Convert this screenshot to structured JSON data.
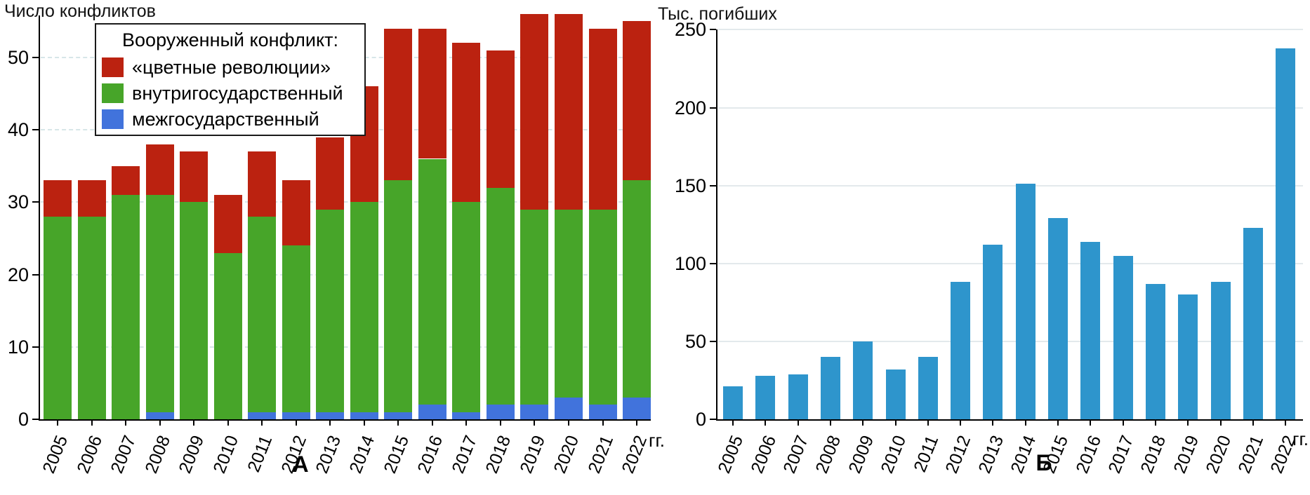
{
  "chart_data": [
    {
      "type": "bar",
      "stacked": true,
      "panel_label": "А",
      "title": "Число конфликтов",
      "x_suffix": "гг.",
      "categories": [
        "2005",
        "2006",
        "2007",
        "2008",
        "2009",
        "2010",
        "2011",
        "2012",
        "2013",
        "2014",
        "2015",
        "2016",
        "2017",
        "2018",
        "2019",
        "2020",
        "2021",
        "2022"
      ],
      "yticks": [
        0,
        10,
        20,
        30,
        40,
        50
      ],
      "ylim": [
        0,
        56
      ],
      "grid": "dashed",
      "legend_title": "Вооруженный конфликт:",
      "legend_items": [
        {
          "label": "«цветные революции»",
          "color": "#bb2210"
        },
        {
          "label": "внутригосударственный",
          "color": "#47a529"
        },
        {
          "label": "межгосударственный",
          "color": "#4173dc"
        }
      ],
      "series": [
        {
          "name": "межгосударственный",
          "color": "#4173dc",
          "values": [
            0,
            0,
            0,
            1,
            0,
            0,
            1,
            1,
            1,
            1,
            1,
            2,
            1,
            2,
            2,
            3,
            2,
            3
          ]
        },
        {
          "name": "внутригосударственный",
          "color": "#47a529",
          "values": [
            28,
            28,
            31,
            30,
            30,
            23,
            27,
            23,
            28,
            29,
            32,
            34,
            29,
            30,
            27,
            26,
            27,
            30
          ]
        },
        {
          "name": "«цветные революции»",
          "color": "#bb2210",
          "values": [
            5,
            5,
            4,
            7,
            7,
            8,
            9,
            9,
            10,
            16,
            21,
            18,
            22,
            19,
            27,
            27,
            25,
            22
          ]
        }
      ],
      "totals": [
        33,
        33,
        35,
        38,
        37,
        31,
        37,
        33,
        39,
        46,
        54,
        54,
        52,
        51,
        56,
        56,
        54,
        55
      ]
    },
    {
      "type": "bar",
      "stacked": false,
      "panel_label": "Б",
      "title": "Тыс. погибших",
      "x_suffix": "гг.",
      "categories": [
        "2005",
        "2006",
        "2007",
        "2008",
        "2009",
        "2010",
        "2011",
        "2012",
        "2013",
        "2014",
        "2015",
        "2016",
        "2017",
        "2018",
        "2019",
        "2020",
        "2021",
        "2022"
      ],
      "yticks": [
        0,
        50,
        100,
        150,
        200,
        250
      ],
      "ylim": [
        0,
        250
      ],
      "grid": "solid",
      "series": [
        {
          "name": "Тыс. погибших",
          "color": "#2e95cc",
          "values": [
            21,
            28,
            29,
            40,
            50,
            32,
            40,
            88,
            112,
            151,
            129,
            114,
            105,
            87,
            80,
            88,
            123,
            238
          ]
        }
      ]
    }
  ]
}
